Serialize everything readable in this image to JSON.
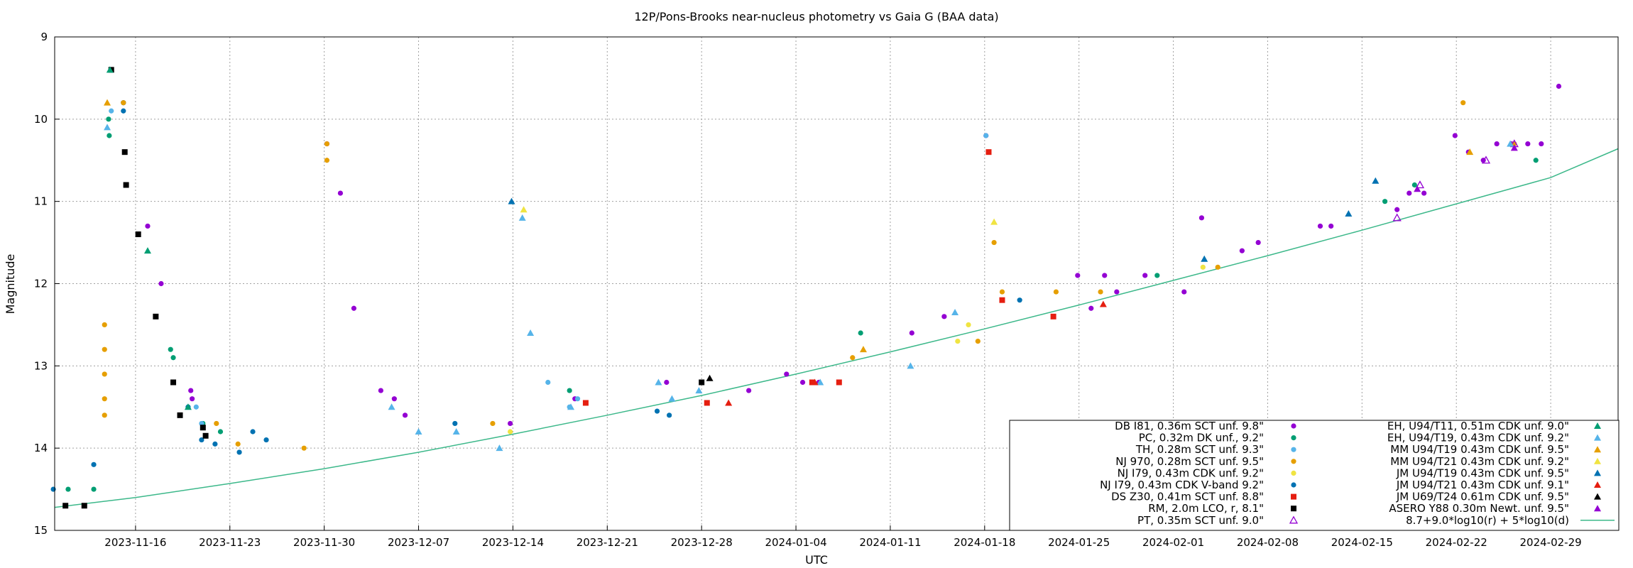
{
  "chart_data": {
    "type": "scatter",
    "title": "12P/Pons-Brooks near-nucleus photometry vs Gaia G (BAA data)",
    "xlabel": "UTC",
    "ylabel": "Magnitude",
    "xlim": [
      "2023-11-10",
      "2024-03-05"
    ],
    "ylim": [
      15,
      9
    ],
    "y_inverted": true,
    "grid": true,
    "legend_position": "bottom-right",
    "x_ticks": [
      "2023-11-16",
      "2023-11-23",
      "2023-11-30",
      "2023-12-07",
      "2023-12-14",
      "2023-12-21",
      "2023-12-28",
      "2024-01-04",
      "2024-01-11",
      "2024-01-18",
      "2024-01-25",
      "2024-02-01",
      "2024-02-08",
      "2024-02-15",
      "2024-02-22",
      "2024-02-29"
    ],
    "y_ticks": [
      "9",
      "10",
      "11",
      "12",
      "13",
      "14",
      "15"
    ],
    "series": [
      {
        "name": "DB I81, 0.36m SCT unf. 9.8\"",
        "color": "#9400d3",
        "marker": "circle",
        "points": [
          [
            "2023-11-15.1",
            9.8
          ],
          [
            "2023-11-16.9",
            11.3
          ],
          [
            "2023-11-17.9",
            12.0
          ],
          [
            "2023-11-20.1",
            13.3
          ],
          [
            "2023-11-20.2",
            13.4
          ],
          [
            "2023-11-30.2",
            10.3
          ],
          [
            "2023-12-01.2",
            10.9
          ],
          [
            "2023-12-02.2",
            12.3
          ],
          [
            "2023-12-04.2",
            13.3
          ],
          [
            "2023-12-05.2",
            13.4
          ],
          [
            "2023-12-06.0",
            13.6
          ],
          [
            "2023-12-13.8",
            13.7
          ],
          [
            "2023-12-18.6",
            13.4
          ],
          [
            "2023-12-25.4",
            13.2
          ],
          [
            "2023-12-31.5",
            13.3
          ],
          [
            "2024-01-03.3",
            13.1
          ],
          [
            "2024-01-04.5",
            13.2
          ],
          [
            "2024-01-05.7",
            13.2
          ],
          [
            "2024-01-12.6",
            12.6
          ],
          [
            "2024-01-15.0",
            12.4
          ],
          [
            "2024-01-18.1",
            10.2
          ],
          [
            "2024-01-24.9",
            11.9
          ],
          [
            "2024-01-25.9",
            12.3
          ],
          [
            "2024-01-26.9",
            11.9
          ],
          [
            "2024-01-27.8",
            12.1
          ],
          [
            "2024-01-29.9",
            11.9
          ],
          [
            "2024-02-01.8",
            12.1
          ],
          [
            "2024-02-03.1",
            11.2
          ],
          [
            "2024-02-06.1",
            11.6
          ],
          [
            "2024-02-07.3",
            11.5
          ],
          [
            "2024-02-11.9",
            11.3
          ],
          [
            "2024-02-12.7",
            11.3
          ],
          [
            "2024-02-17.6",
            11.1
          ],
          [
            "2024-02-18.5",
            10.9
          ],
          [
            "2024-02-19.6",
            10.9
          ],
          [
            "2024-02-21.9",
            10.2
          ],
          [
            "2024-02-22.9",
            10.4
          ],
          [
            "2024-02-24.0",
            10.5
          ],
          [
            "2024-02-25.0",
            10.3
          ],
          [
            "2024-02-26.1",
            10.3
          ],
          [
            "2024-02-27.3",
            10.3
          ],
          [
            "2024-02-28.3",
            10.3
          ],
          [
            "2024-02-29.6",
            9.6
          ]
        ]
      },
      {
        "name": "PC, 0.32m DK unf., 9.2\"",
        "color": "#009e73",
        "marker": "circle",
        "points": [
          [
            "2023-11-11.0",
            14.5
          ],
          [
            "2023-11-12.9",
            14.5
          ],
          [
            "2023-11-14.0",
            10.0
          ],
          [
            "2023-11-14.05",
            10.2
          ],
          [
            "2023-11-15.1",
            9.8
          ],
          [
            "2023-11-18.6",
            12.8
          ],
          [
            "2023-11-18.8",
            12.9
          ],
          [
            "2023-11-21.0",
            13.7
          ],
          [
            "2023-11-22.3",
            13.8
          ],
          [
            "2023-12-18.2",
            13.3
          ],
          [
            "2024-01-08.8",
            12.6
          ],
          [
            "2024-01-30.8",
            11.9
          ],
          [
            "2024-02-16.7",
            11.0
          ],
          [
            "2024-02-18.9",
            10.8
          ],
          [
            "2024-02-27.9",
            10.5
          ]
        ]
      },
      {
        "name": "TH, 0.28m SCT unf. 9.3\"",
        "color": "#56b4e9",
        "marker": "circle",
        "points": [
          [
            "2023-11-14.2",
            9.9
          ],
          [
            "2023-11-19.9",
            13.5
          ],
          [
            "2023-11-20.5",
            13.5
          ],
          [
            "2023-11-20.9",
            13.7
          ],
          [
            "2023-12-16.6",
            13.2
          ],
          [
            "2023-12-18.2",
            13.5
          ],
          [
            "2023-12-18.8",
            13.4
          ],
          [
            "2024-01-18.1",
            10.2
          ]
        ]
      },
      {
        "name": "NJ 970, 0.28m SCT unf. 9.5\"",
        "color": "#e69f00",
        "marker": "circle",
        "points": [
          [
            "2023-11-13.7",
            12.5
          ],
          [
            "2023-11-13.7",
            12.8
          ],
          [
            "2023-11-13.7",
            13.1
          ],
          [
            "2023-11-13.7",
            13.4
          ],
          [
            "2023-11-13.7",
            13.6
          ],
          [
            "2023-11-15.1",
            9.8
          ],
          [
            "2023-11-22.0",
            13.7
          ],
          [
            "2023-11-23.6",
            13.95
          ],
          [
            "2023-11-28.5",
            14.0
          ],
          [
            "2023-11-30.2",
            10.3
          ],
          [
            "2023-11-30.2",
            10.5
          ],
          [
            "2023-12-12.5",
            13.7
          ],
          [
            "2024-01-08.2",
            12.9
          ],
          [
            "2024-01-17.5",
            12.7
          ],
          [
            "2024-01-18.7",
            11.5
          ],
          [
            "2024-01-19.3",
            12.1
          ],
          [
            "2024-01-23.3",
            12.1
          ],
          [
            "2024-01-26.6",
            12.1
          ],
          [
            "2024-02-04.3",
            11.8
          ],
          [
            "2024-02-22.5",
            9.8
          ],
          [
            "2024-02-26.3",
            10.3
          ]
        ]
      },
      {
        "name": "NJ I79, 0.43m CDK unf. 9.2\"",
        "color": "#f0e442",
        "marker": "circle",
        "points": [
          [
            "2023-12-13.8",
            13.8
          ],
          [
            "2024-01-16.0",
            12.7
          ],
          [
            "2024-01-16.8",
            12.5
          ],
          [
            "2024-02-03.2",
            11.8
          ]
        ]
      },
      {
        "name": "NJ I79, 0.43m CDK V-band 9.2\"",
        "color": "#0072b2",
        "marker": "circle",
        "points": [
          [
            "2023-11-09.9",
            14.5
          ],
          [
            "2023-11-12.9",
            14.2
          ],
          [
            "2023-11-15.1",
            9.9
          ],
          [
            "2023-11-19.9",
            13.5
          ],
          [
            "2023-11-20.9",
            13.9
          ],
          [
            "2023-11-21.9",
            13.95
          ],
          [
            "2023-11-23.7",
            14.05
          ],
          [
            "2023-11-24.7",
            13.8
          ],
          [
            "2023-11-25.7",
            13.9
          ],
          [
            "2023-12-09.7",
            13.7
          ],
          [
            "2023-12-24.7",
            13.55
          ],
          [
            "2023-12-25.6",
            13.6
          ],
          [
            "2024-01-20.6",
            12.2
          ]
        ]
      },
      {
        "name": "DS Z30, 0.41m SCT unf. 8.8\"",
        "color": "#e51e10",
        "marker": "square",
        "points": [
          [
            "2023-12-19.4",
            13.45
          ],
          [
            "2023-12-28.4",
            13.45
          ],
          [
            "2024-01-05.2",
            13.2
          ],
          [
            "2024-01-07.2",
            13.2
          ],
          [
            "2024-01-18.3",
            10.4
          ],
          [
            "2024-01-19.3",
            12.2
          ],
          [
            "2024-01-23.1",
            12.4
          ]
        ]
      },
      {
        "name": "RM, 2.0m LCO, r, 8.1\"",
        "color": "#000000",
        "marker": "square",
        "points": [
          [
            "2023-11-10.8",
            14.7
          ],
          [
            "2023-11-12.2",
            14.7
          ],
          [
            "2023-11-14.2",
            9.4
          ],
          [
            "2023-11-15.2",
            10.4
          ],
          [
            "2023-11-15.3",
            10.8
          ],
          [
            "2023-11-16.2",
            11.4
          ],
          [
            "2023-11-17.5",
            12.4
          ],
          [
            "2023-11-18.8",
            13.2
          ],
          [
            "2023-11-19.3",
            13.6
          ],
          [
            "2023-11-21.0",
            13.75
          ],
          [
            "2023-11-21.2",
            13.85
          ],
          [
            "2023-12-28.0",
            13.2
          ]
        ]
      },
      {
        "name": "PT, 0.35m SCT unf. 9.0\"",
        "color": "#9400d3",
        "marker": "triangle-open",
        "points": [
          [
            "2024-02-17.6",
            11.2
          ],
          [
            "2024-02-19.3",
            10.8
          ],
          [
            "2024-02-24.2",
            10.5
          ],
          [
            "2024-02-26.3",
            10.3
          ]
        ]
      },
      {
        "name": "EH, U94/T11, 0.51m CDK unf. 9.0\"",
        "color": "#009e73",
        "marker": "triangle",
        "points": [
          [
            "2023-11-14.1",
            9.4
          ],
          [
            "2023-11-16.9",
            11.6
          ],
          [
            "2023-11-19.9",
            13.5
          ]
        ]
      },
      {
        "name": "EH, U94/T19, 0.43m CDK unf. 9.2\"",
        "color": "#56b4e9",
        "marker": "triangle",
        "points": [
          [
            "2023-11-13.9",
            10.1
          ],
          [
            "2023-12-05.0",
            13.5
          ],
          [
            "2023-12-07.0",
            13.8
          ],
          [
            "2023-12-09.8",
            13.8
          ],
          [
            "2023-12-13.0",
            14.0
          ],
          [
            "2023-12-14.7",
            11.2
          ],
          [
            "2023-12-15.3",
            12.6
          ],
          [
            "2023-12-18.3",
            13.5
          ],
          [
            "2023-12-24.8",
            13.2
          ],
          [
            "2023-12-25.8",
            13.4
          ],
          [
            "2023-12-27.8",
            13.3
          ],
          [
            "2024-01-05.8",
            13.2
          ],
          [
            "2024-01-12.5",
            13.0
          ],
          [
            "2024-01-15.8",
            12.35
          ],
          [
            "2024-02-26.0",
            10.3
          ]
        ]
      },
      {
        "name": "MM U94/T19 0.43m CDK unf. 9.5\"",
        "color": "#e69f00",
        "marker": "triangle",
        "points": [
          [
            "2023-11-13.9",
            9.8
          ],
          [
            "2024-01-09.0",
            12.8
          ],
          [
            "2024-02-23.0",
            10.4
          ]
        ]
      },
      {
        "name": "MM U94/T21 0.43m CDK unf. 9.2\"",
        "color": "#f0e442",
        "marker": "triangle",
        "points": [
          [
            "2023-12-14.8",
            11.1
          ],
          [
            "2024-01-18.7",
            11.25
          ]
        ]
      },
      {
        "name": "JM U94/T19 0.43m CDK unf. 9.5\"",
        "color": "#0072b2",
        "marker": "triangle",
        "points": [
          [
            "2023-12-13.9",
            11.0
          ],
          [
            "2024-02-03.3",
            11.7
          ],
          [
            "2024-02-14.0",
            11.15
          ],
          [
            "2024-02-16.0",
            10.75
          ]
        ]
      },
      {
        "name": "JM U94/T21 0.43m CDK unf. 9.1\"",
        "color": "#e51e10",
        "marker": "triangle",
        "points": [
          [
            "2023-12-30.0",
            13.45
          ],
          [
            "2024-01-05.4",
            13.2
          ],
          [
            "2024-01-26.8",
            12.25
          ]
        ]
      },
      {
        "name": "JM U69/T24 0.61m CDK unf. 9.5\"",
        "color": "#000000",
        "marker": "triangle",
        "points": [
          [
            "2023-12-28.6",
            13.15
          ]
        ]
      },
      {
        "name": "ASERO Y88 0.30m Newt. unf. 9.5\"",
        "color": "#9400d3",
        "marker": "triangle",
        "points": [
          [
            "2024-02-19.1",
            10.85
          ],
          [
            "2024-02-26.3",
            10.35
          ]
        ]
      },
      {
        "name": "8.7+9.0*log10(r) + 5*log10(d)",
        "color": "#3cb88a",
        "marker": "line",
        "points": [
          [
            "2023-11-10",
            14.72
          ],
          [
            "2023-11-16",
            14.6
          ],
          [
            "2023-11-23",
            14.43
          ],
          [
            "2023-11-30",
            14.25
          ],
          [
            "2023-12-07",
            14.05
          ],
          [
            "2023-12-14",
            13.83
          ],
          [
            "2023-12-21",
            13.6
          ],
          [
            "2023-12-28",
            13.36
          ],
          [
            "2024-01-04",
            13.1
          ],
          [
            "2024-01-11",
            12.83
          ],
          [
            "2024-01-18",
            12.55
          ],
          [
            "2024-01-25",
            12.26
          ],
          [
            "2024-02-01",
            11.96
          ],
          [
            "2024-02-08",
            11.66
          ],
          [
            "2024-02-15",
            11.35
          ],
          [
            "2024-02-22",
            11.03
          ],
          [
            "2024-02-29",
            10.71
          ],
          [
            "2024-03-05",
            10.36
          ]
        ]
      }
    ]
  }
}
